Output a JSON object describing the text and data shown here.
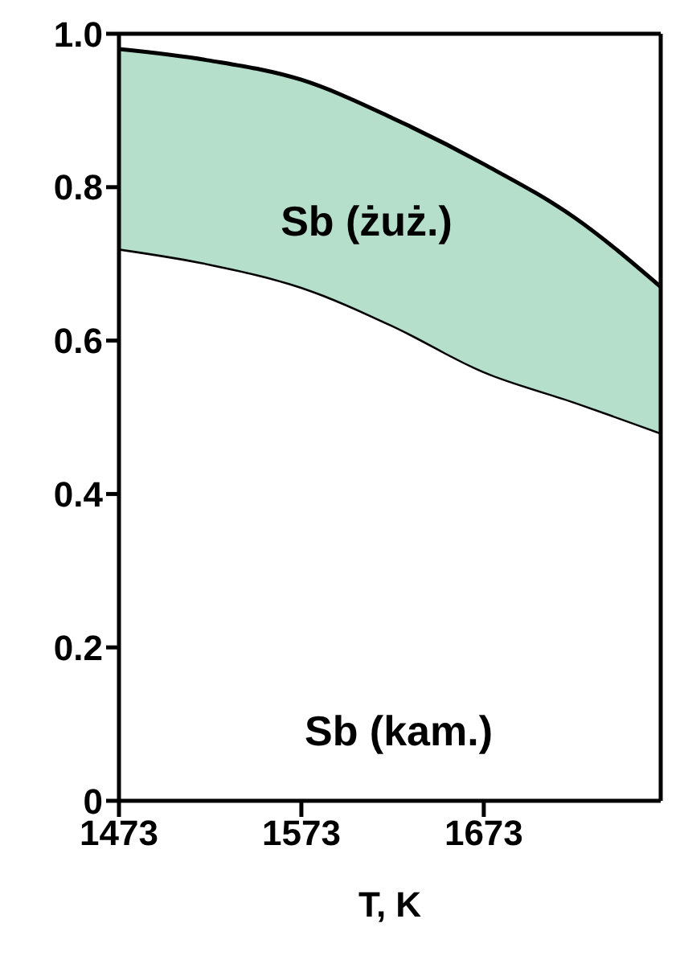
{
  "chart_data": {
    "type": "area",
    "stacked": true,
    "x": [
      1473,
      1523,
      1573,
      1623,
      1673,
      1723,
      1770
    ],
    "series": [
      {
        "color": "#ffffff",
        "values": [
          0.72,
          0.7,
          0.67,
          0.62,
          0.56,
          0.52,
          0.48
        ]
      },
      {
        "color": "#b5dfcb",
        "values": [
          0.26,
          0.265,
          0.27,
          0.27,
          0.27,
          0.24,
          0.19
        ]
      }
    ],
    "xlabel": "T, K",
    "xlim": [
      1473,
      1770
    ],
    "xticks": [
      1473,
      1573,
      1673
    ],
    "ylim": [
      0,
      1
    ],
    "yticks": [
      0,
      0.2,
      0.4,
      0.6,
      0.8,
      {
        "value": 1,
        "label": "1.0"
      }
    ],
    "annotations": [
      "Sb (żuż.)",
      "Sb (kam.)"
    ]
  }
}
